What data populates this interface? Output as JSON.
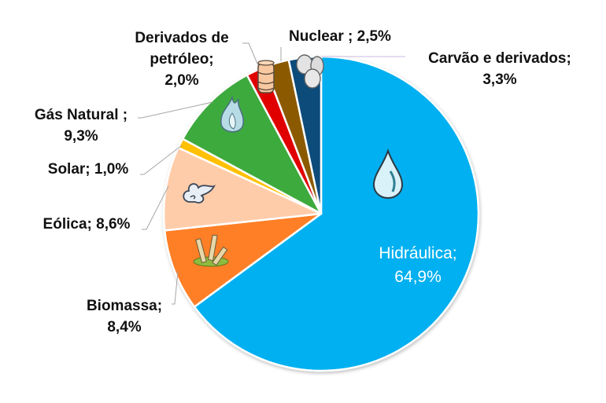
{
  "chart_data": {
    "type": "pie",
    "title": "",
    "start_angle_deg": 0,
    "direction": "clockwise",
    "unit": "%",
    "slices": [
      {
        "name": "Hidráulica",
        "value": 64.9,
        "label": "Hidráulica;",
        "value_label": "64,9%",
        "color": "#00B0F0",
        "icon": "water-drop-icon"
      },
      {
        "name": "Biomassa",
        "value": 8.4,
        "label": "Biomassa;",
        "value_label": "8,4%",
        "color": "#FF7F27",
        "icon": "sugarcane-icon"
      },
      {
        "name": "Eólica",
        "value": 8.6,
        "label": "Eólica; 8,6%",
        "value_label": "",
        "color": "#FFCCAA",
        "icon": "wind-icon"
      },
      {
        "name": "Solar",
        "value": 1.0,
        "label": "Solar; 1,0%",
        "value_label": "",
        "color": "#FFC000",
        "icon": ""
      },
      {
        "name": "Gás Natural",
        "value": 9.3,
        "label": "Gás Natural ;",
        "value_label": "9,3%",
        "color": "#3EAA3E",
        "icon": "gas-flame-icon"
      },
      {
        "name": "Derivados de petróleo",
        "value": 2.0,
        "label": "Derivados de petróleo;",
        "value_label": "2,0%",
        "color": "#E00000",
        "icon": "oil-barrel-icon"
      },
      {
        "name": "Nuclear",
        "value": 2.5,
        "label": "Nuclear ; 2,5%",
        "value_label": "",
        "color": "#8B5A00",
        "icon": ""
      },
      {
        "name": "Carvão e derivados",
        "value": 3.3,
        "label": "Carvão e derivados;",
        "value_label": "3,3%",
        "color": "#0E4C7A",
        "icon": "coal-icon"
      }
    ],
    "legend": "none (data labels with leader lines)"
  },
  "labels": {
    "hidraulica": {
      "line1": "Hidráulica;",
      "line2": "64,9%"
    },
    "biomassa": {
      "line1": "Biomassa;",
      "line2": "8,4%"
    },
    "eolica": {
      "line1": "Eólica; 8,6%"
    },
    "solar": {
      "line1": "Solar; 1,0%"
    },
    "gas": {
      "line1": "Gás Natural ;",
      "line2": "9,3%"
    },
    "derivados": {
      "line1": "Derivados de",
      "line2": "petróleo;",
      "line3": "2,0%"
    },
    "nuclear": {
      "line1": "Nuclear ; 2,5%"
    },
    "carvao": {
      "line1": "Carvão e derivados;",
      "line2": "3,3%"
    }
  }
}
